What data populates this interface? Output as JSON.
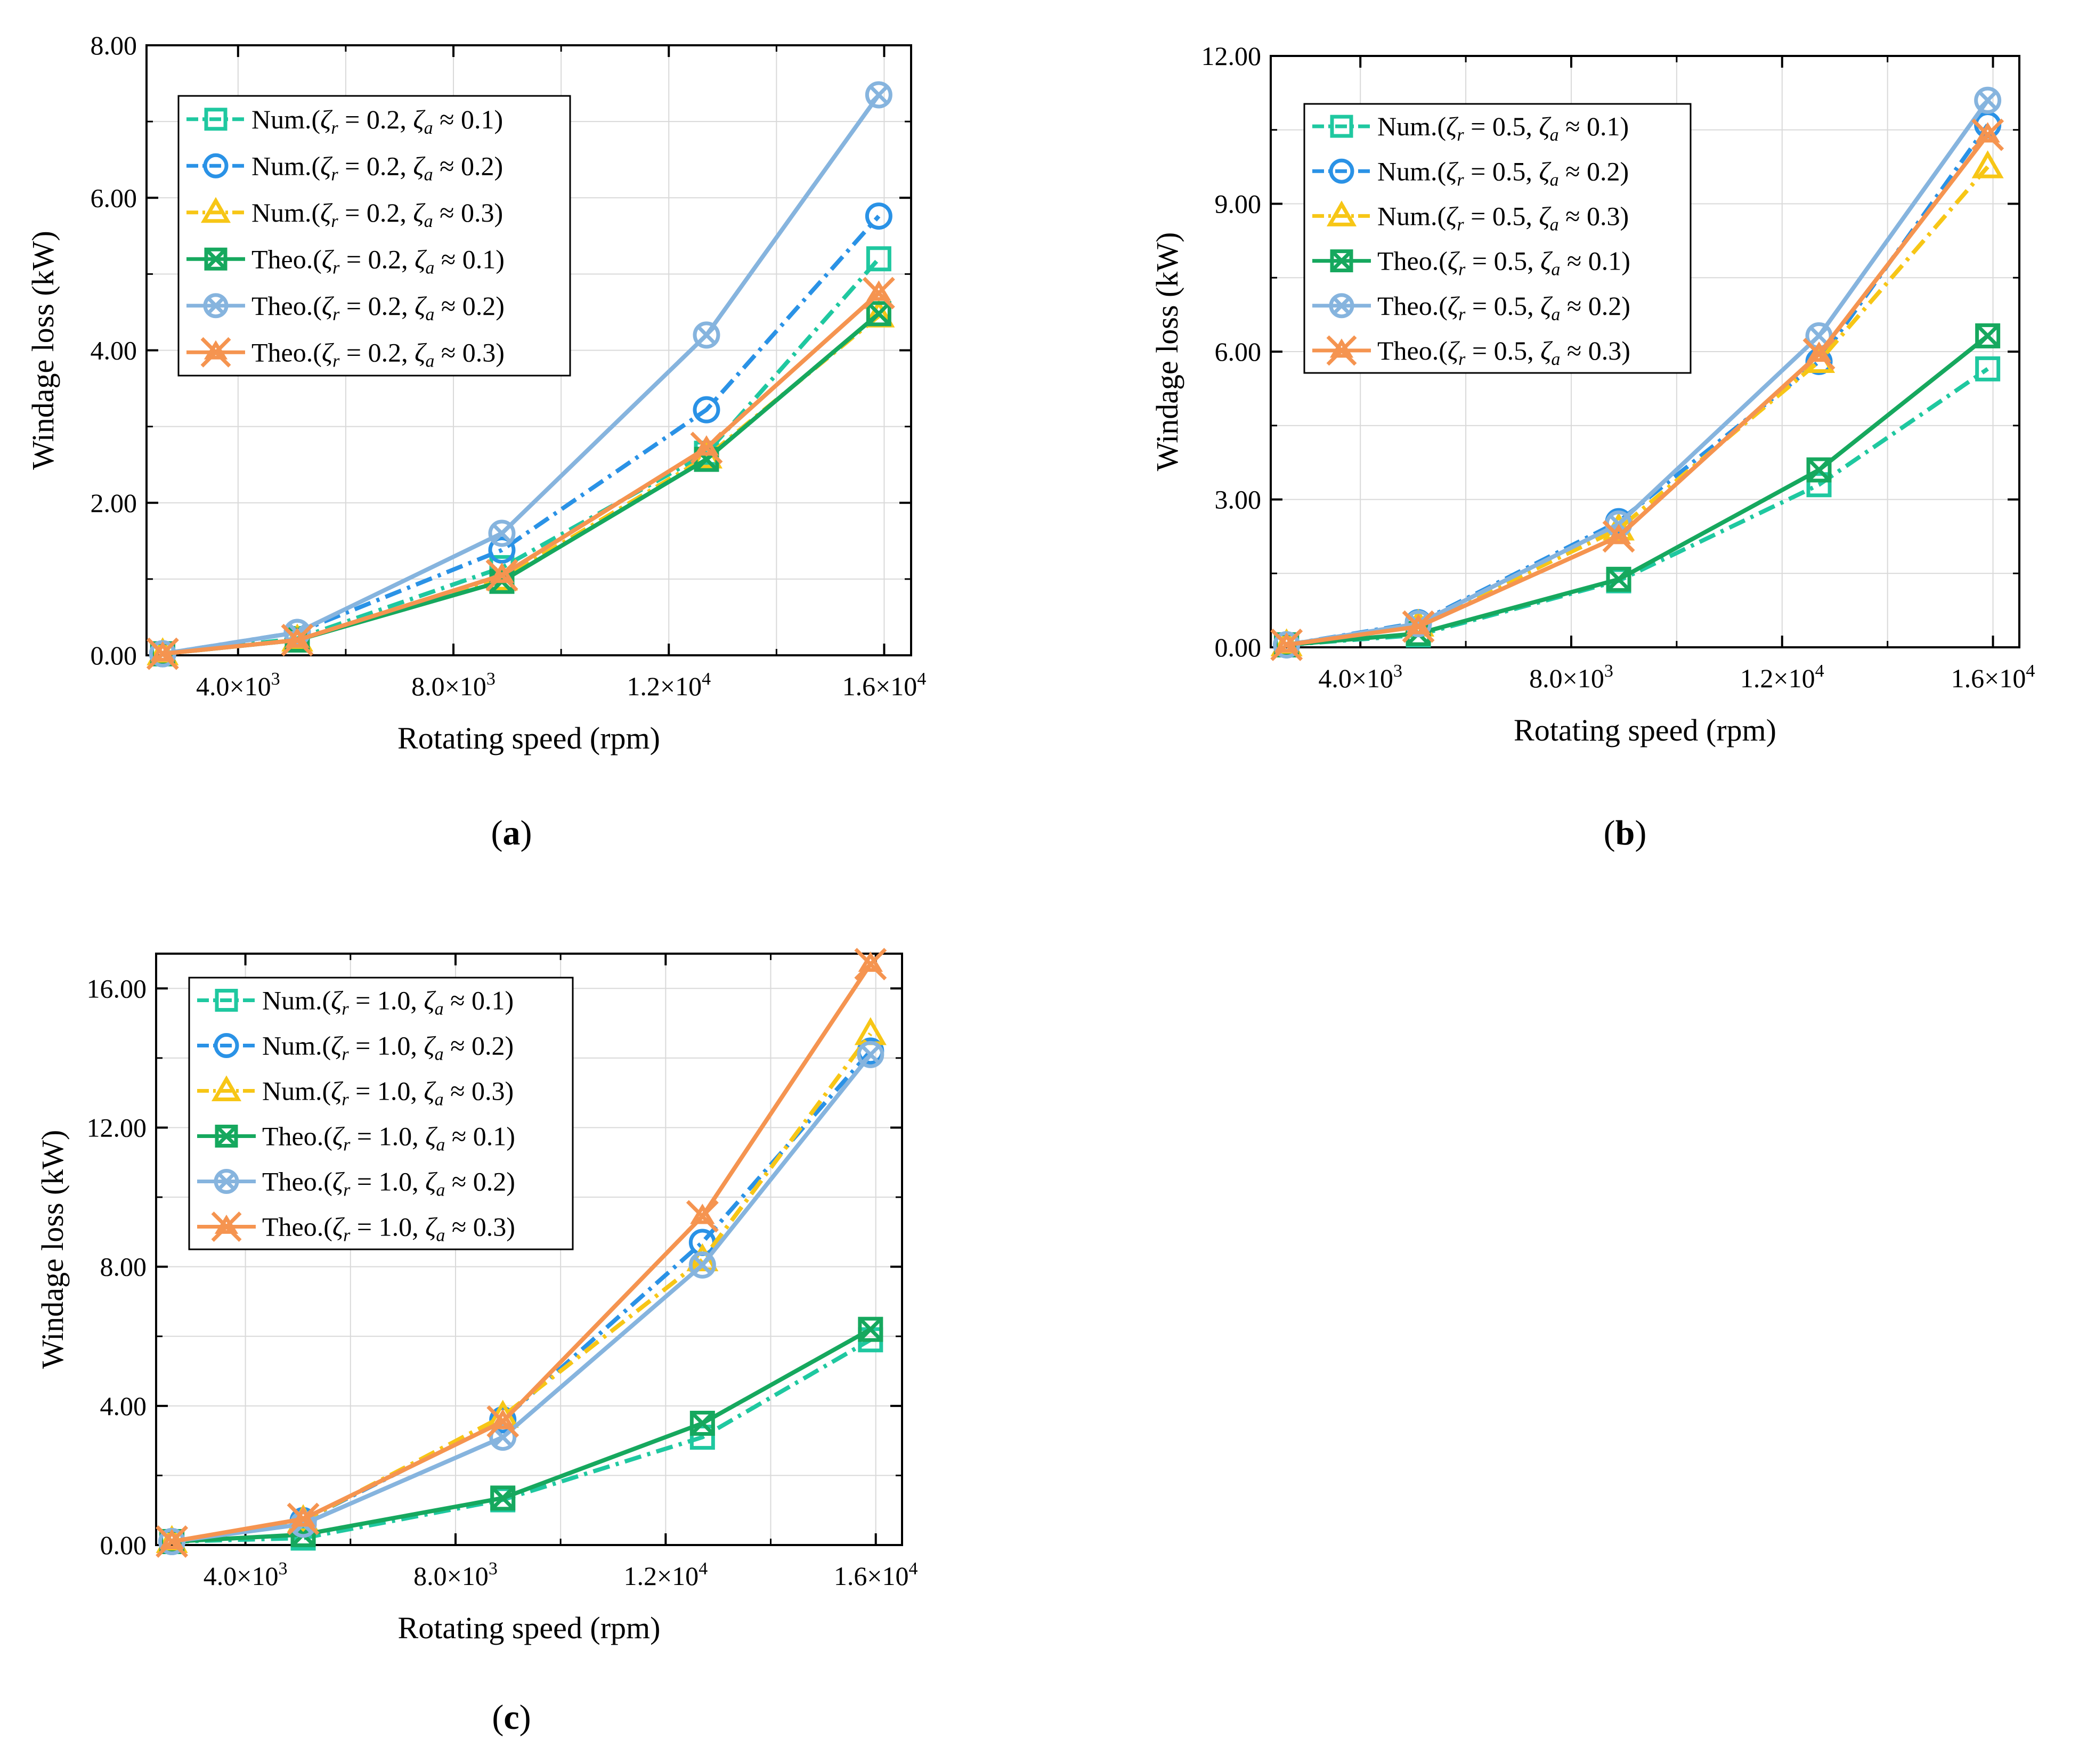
{
  "figure_labels": {
    "a": "a",
    "b": "b",
    "c": "c"
  },
  "chart_data": [
    {
      "panel": "a",
      "type": "line",
      "xlabel": "Rotating speed (rpm)",
      "ylabel": "Windage loss (kW)",
      "xlim": [
        2300,
        16500
      ],
      "ylim": [
        0,
        8
      ],
      "xticks": [
        4000,
        8000,
        12000,
        16000
      ],
      "xtick_labels": [
        [
          "4.0×10",
          "3"
        ],
        [
          "8.0×10",
          "3"
        ],
        [
          "1.2×10",
          "4"
        ],
        [
          "1.6×10",
          "4"
        ]
      ],
      "yticks": [
        0,
        2,
        4,
        6,
        8
      ],
      "ytick_labels": [
        "0.00",
        "2.00",
        "4.00",
        "6.00",
        "8.00"
      ],
      "x": [
        2600,
        5100,
        8900,
        12700,
        15900
      ],
      "series": [
        {
          "name": "Num.(ζr = 0.2, ζa ≈ 0.1)",
          "values": [
            0.02,
            0.22,
            1.15,
            2.65,
            5.2
          ]
        },
        {
          "name": "Num.(ζr = 0.2, ζa ≈ 0.2)",
          "values": [
            0.02,
            0.3,
            1.38,
            3.22,
            5.76
          ]
        },
        {
          "name": "Num.(ζr = 0.2, ζa ≈ 0.3)",
          "values": [
            0.02,
            0.2,
            1.0,
            2.6,
            4.45
          ]
        },
        {
          "name": "Theo.(ζr = 0.2, ζa ≈ 0.1)",
          "values": [
            0.02,
            0.2,
            0.97,
            2.57,
            4.48
          ]
        },
        {
          "name": "Theo.(ζr = 0.2, ζa ≈ 0.2)",
          "values": [
            0.02,
            0.3,
            1.6,
            4.2,
            7.35
          ]
        },
        {
          "name": "Theo.(ζr = 0.2, ζa ≈ 0.3)",
          "values": [
            0.02,
            0.2,
            1.05,
            2.72,
            4.75
          ]
        }
      ]
    },
    {
      "panel": "b",
      "type": "line",
      "xlabel": "Rotating speed (rpm)",
      "ylabel": "Windage loss (kW)",
      "xlim": [
        2300,
        16500
      ],
      "ylim": [
        0,
        12
      ],
      "xticks": [
        4000,
        8000,
        12000,
        16000
      ],
      "xtick_labels": [
        [
          "4.0×10",
          "3"
        ],
        [
          "8.0×10",
          "3"
        ],
        [
          "1.2×10",
          "4"
        ],
        [
          "1.6×10",
          "4"
        ]
      ],
      "yticks": [
        0,
        3,
        6,
        9,
        12
      ],
      "ytick_labels": [
        "0.00",
        "3.00",
        "6.00",
        "9.00",
        "12.00"
      ],
      "x": [
        2600,
        5100,
        8900,
        12700,
        15900
      ],
      "series": [
        {
          "name": "Num.(ζr = 0.5, ζa ≈ 0.1)",
          "values": [
            0.05,
            0.25,
            1.35,
            3.3,
            5.65
          ]
        },
        {
          "name": "Num.(ζr = 0.5, ζa ≈ 0.2)",
          "values": [
            0.05,
            0.5,
            2.55,
            5.8,
            10.6
          ]
        },
        {
          "name": "Num.(ζr = 0.5, ζa ≈ 0.3)",
          "values": [
            0.05,
            0.45,
            2.4,
            5.8,
            9.75
          ]
        },
        {
          "name": "Theo.(ζr = 0.5, ζa ≈ 0.1)",
          "values": [
            0.05,
            0.28,
            1.38,
            3.6,
            6.32
          ]
        },
        {
          "name": "Theo.(ζr = 0.5, ζa ≈ 0.2)",
          "values": [
            0.05,
            0.48,
            2.5,
            6.32,
            11.1
          ]
        },
        {
          "name": "Theo.(ζr = 0.5, ζa ≈ 0.3)",
          "values": [
            0.05,
            0.42,
            2.25,
            5.95,
            10.4
          ]
        }
      ]
    },
    {
      "panel": "c",
      "type": "line",
      "xlabel": "Rotating speed (rpm)",
      "ylabel": "Windage loss (kW)",
      "xlim": [
        2300,
        16500
      ],
      "ylim": [
        0,
        17
      ],
      "xticks": [
        4000,
        8000,
        12000,
        16000
      ],
      "xtick_labels": [
        [
          "4.0×10",
          "3"
        ],
        [
          "8.0×10",
          "3"
        ],
        [
          "1.2×10",
          "4"
        ],
        [
          "1.6×10",
          "4"
        ]
      ],
      "yticks": [
        0,
        4,
        8,
        12,
        16
      ],
      "ytick_labels": [
        "0.00",
        "4.00",
        "8.00",
        "12.00",
        "16.00"
      ],
      "x": [
        2600,
        5100,
        8900,
        12700,
        15900
      ],
      "series": [
        {
          "name": "Num.(ζr = 1.0, ζa ≈ 0.1)",
          "values": [
            0.1,
            0.2,
            1.3,
            3.1,
            5.9
          ]
        },
        {
          "name": "Num.(ζr = 1.0, ζa ≈ 0.2)",
          "values": [
            0.1,
            0.7,
            3.6,
            8.7,
            14.2
          ]
        },
        {
          "name": "Num.(ζr = 1.0, ζa ≈ 0.3)",
          "values": [
            0.1,
            0.7,
            3.7,
            8.2,
            14.7
          ]
        },
        {
          "name": "Theo.(ζr = 1.0, ζa ≈ 0.1)",
          "values": [
            0.1,
            0.3,
            1.35,
            3.5,
            6.2
          ]
        },
        {
          "name": "Theo.(ζr = 1.0, ζa ≈ 0.2)",
          "values": [
            0.1,
            0.6,
            3.1,
            8.05,
            14.1
          ]
        },
        {
          "name": "Theo.(ζr = 1.0, ζa ≈ 0.3)",
          "values": [
            0.1,
            0.75,
            3.55,
            9.45,
            16.7
          ]
        }
      ]
    }
  ],
  "legend_template": [
    {
      "prefix": "Num.",
      "za": "0.1",
      "color": "#1fc8a0",
      "dash": "dashdot",
      "marker": "square"
    },
    {
      "prefix": "Num.",
      "za": "0.2",
      "color": "#2a92e6",
      "dash": "dashdot",
      "marker": "circle"
    },
    {
      "prefix": "Num.",
      "za": "0.3",
      "color": "#f7c616",
      "dash": "dashdot",
      "marker": "triangle"
    },
    {
      "prefix": "Theo.",
      "za": "0.1",
      "color": "#16a85e",
      "dash": "solid",
      "marker": "boxx"
    },
    {
      "prefix": "Theo.",
      "za": "0.2",
      "color": "#86b4de",
      "dash": "solid",
      "marker": "circlex"
    },
    {
      "prefix": "Theo.",
      "za": "0.3",
      "color": "#f59450",
      "dash": "solid",
      "marker": "star"
    }
  ],
  "zr_values": [
    "0.2",
    "0.5",
    "1.0"
  ]
}
